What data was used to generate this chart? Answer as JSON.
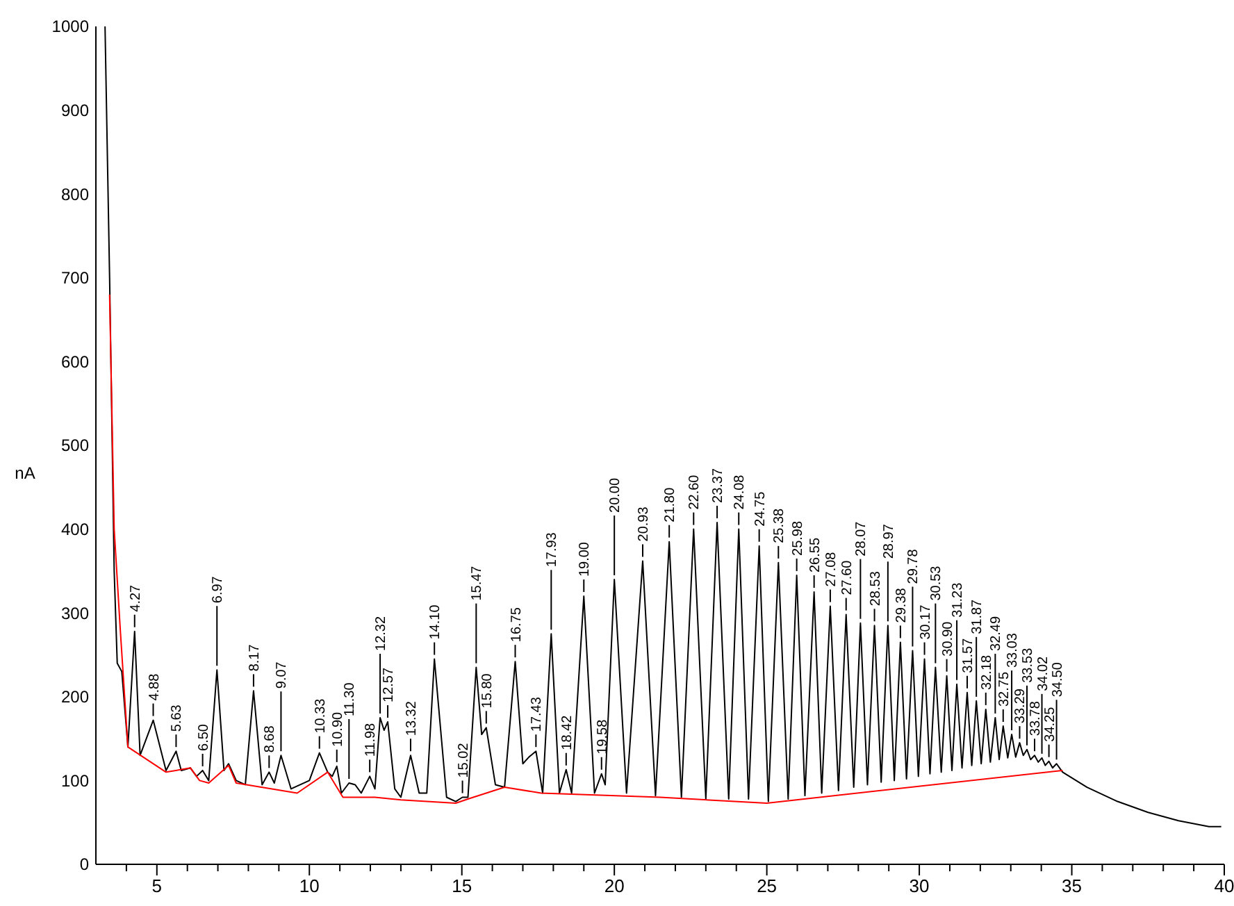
{
  "chart_data": {
    "type": "line",
    "ylabel": "nA",
    "xlim": [
      3,
      40
    ],
    "ylim": [
      0,
      1000
    ],
    "xticks": [
      {
        "value": 4,
        "label": null
      },
      5,
      {
        "value": 6,
        "label": null
      },
      {
        "value": 7,
        "label": null
      },
      {
        "value": 8,
        "label": null
      },
      {
        "value": 9,
        "label": null
      },
      10,
      {
        "value": 11,
        "label": null
      },
      {
        "value": 12,
        "label": null
      },
      {
        "value": 13,
        "label": null
      },
      {
        "value": 14,
        "label": null
      },
      15,
      {
        "value": 16,
        "label": null
      },
      {
        "value": 17,
        "label": null
      },
      {
        "value": 18,
        "label": null
      },
      {
        "value": 19,
        "label": null
      },
      20,
      {
        "value": 21,
        "label": null
      },
      {
        "value": 22,
        "label": null
      },
      {
        "value": 23,
        "label": null
      },
      {
        "value": 24,
        "label": null
      },
      25,
      {
        "value": 26,
        "label": null
      },
      {
        "value": 27,
        "label": null
      },
      {
        "value": 28,
        "label": null
      },
      {
        "value": 29,
        "label": null
      },
      30,
      {
        "value": 31,
        "label": null
      },
      {
        "value": 32,
        "label": null
      },
      {
        "value": 33,
        "label": null
      },
      {
        "value": 34,
        "label": null
      },
      35,
      {
        "value": 36,
        "label": null
      },
      {
        "value": 37,
        "label": null
      },
      {
        "value": 38,
        "label": null
      },
      {
        "value": 39,
        "label": null
      },
      40
    ],
    "yticks": [
      0,
      100,
      200,
      300,
      400,
      500,
      600,
      700,
      800,
      900,
      1000
    ],
    "grid": false,
    "marker": "none",
    "line_style": "solid",
    "series": [
      {
        "color": "#000000",
        "x": [
          3.3,
          3.45,
          3.6,
          3.7,
          3.85,
          4.05,
          4.27,
          4.45,
          4.88,
          5.3,
          5.63,
          5.8,
          6.1,
          6.3,
          6.5,
          6.7,
          6.97,
          7.2,
          7.35,
          7.6,
          7.9,
          8.17,
          8.45,
          8.68,
          8.85,
          9.07,
          9.4,
          9.7,
          10.0,
          10.33,
          10.6,
          10.75,
          10.9,
          11.05,
          11.3,
          11.5,
          11.7,
          11.98,
          12.15,
          12.32,
          12.45,
          12.57,
          12.8,
          13.0,
          13.32,
          13.6,
          13.85,
          14.1,
          14.5,
          14.8,
          15.02,
          15.2,
          15.47,
          15.65,
          15.8,
          16.1,
          16.4,
          16.75,
          17.0,
          17.2,
          17.43,
          17.65,
          17.93,
          18.2,
          18.42,
          18.6,
          19.0,
          19.35,
          19.58,
          19.7,
          20.0,
          20.4,
          20.93,
          21.35,
          21.8,
          22.2,
          22.6,
          23.0,
          23.37,
          23.75,
          24.08,
          24.4,
          24.75,
          25.05,
          25.38,
          25.7,
          25.98,
          26.25,
          26.55,
          26.8,
          27.08,
          27.35,
          27.6,
          27.85,
          28.07,
          28.3,
          28.53,
          28.75,
          28.97,
          29.18,
          29.38,
          29.58,
          29.78,
          29.97,
          30.17,
          30.35,
          30.53,
          30.72,
          30.9,
          31.07,
          31.23,
          31.4,
          31.57,
          31.72,
          31.87,
          32.03,
          32.18,
          32.33,
          32.49,
          32.62,
          32.75,
          32.9,
          33.03,
          33.16,
          33.29,
          33.41,
          33.53,
          33.65,
          33.78,
          33.9,
          34.02,
          34.13,
          34.25,
          34.37,
          34.5,
          34.7,
          35.5,
          36.5,
          37.5,
          38.5,
          39.5,
          39.9
        ],
        "values": [
          1000,
          700,
          350,
          240,
          230,
          140,
          278,
          130,
          172,
          112,
          135,
          112,
          115,
          105,
          112,
          100,
          232,
          112,
          120,
          100,
          95,
          207,
          95,
          110,
          97,
          130,
          90,
          95,
          100,
          133,
          110,
          105,
          117,
          85,
          97,
          95,
          85,
          105,
          90,
          175,
          160,
          170,
          90,
          80,
          130,
          85,
          85,
          245,
          80,
          75,
          80,
          80,
          235,
          155,
          163,
          95,
          92,
          242,
          120,
          128,
          135,
          85,
          275,
          85,
          113,
          85,
          320,
          85,
          108,
          95,
          340,
          85,
          362,
          82,
          385,
          80,
          400,
          78,
          408,
          78,
          400,
          78,
          380,
          75,
          360,
          78,
          345,
          82,
          325,
          85,
          308,
          88,
          298,
          92,
          288,
          95,
          285,
          98,
          285,
          100,
          265,
          102,
          255,
          105,
          245,
          108,
          235,
          110,
          225,
          112,
          215,
          115,
          205,
          118,
          195,
          120,
          185,
          122,
          175,
          125,
          165,
          127,
          155,
          128,
          145,
          130,
          137,
          125,
          130,
          122,
          127,
          118,
          123,
          115,
          120,
          110,
          92,
          75,
          62,
          52,
          45,
          45
        ]
      },
      {
        "color": "#ff0000",
        "x": [
          3.45,
          3.6,
          3.8,
          4.05,
          5.3,
          6.1,
          6.4,
          6.7,
          7.35,
          7.6,
          9.6,
          10.6,
          11.1,
          12.15,
          13.0,
          14.8,
          15.2,
          16.4,
          17.6,
          21.5,
          25.0,
          34.7
        ],
        "values": [
          680,
          400,
          280,
          140,
          110,
          115,
          100,
          97,
          118,
          97,
          85,
          110,
          80,
          80,
          77,
          73,
          78,
          92,
          85,
          80,
          73,
          112
        ]
      }
    ],
    "annotations": [
      {
        "text": "4.27",
        "x": 4.27,
        "y": 278
      },
      {
        "text": "4.88",
        "x": 4.88,
        "y": 172
      },
      {
        "text": "5.63",
        "x": 5.63,
        "y": 135
      },
      {
        "text": "6.50",
        "x": 6.5,
        "y": 112
      },
      {
        "text": "6.97",
        "x": 6.97,
        "y": 232
      },
      {
        "text": "8.17",
        "x": 8.17,
        "y": 207
      },
      {
        "text": "8.68",
        "x": 8.68,
        "y": 110
      },
      {
        "text": "9.07",
        "x": 9.07,
        "y": 130
      },
      {
        "text": "10.33",
        "x": 10.33,
        "y": 133
      },
      {
        "text": "10.90",
        "x": 10.9,
        "y": 117
      },
      {
        "text": "11.30",
        "x": 11.3,
        "y": 97
      },
      {
        "text": "11.98",
        "x": 11.98,
        "y": 105
      },
      {
        "text": "12.32",
        "x": 12.32,
        "y": 175
      },
      {
        "text": "12.57",
        "x": 12.57,
        "y": 170
      },
      {
        "text": "13.32",
        "x": 13.32,
        "y": 130
      },
      {
        "text": "14.10",
        "x": 14.1,
        "y": 245
      },
      {
        "text": "15.02",
        "x": 15.02,
        "y": 80
      },
      {
        "text": "15.47",
        "x": 15.47,
        "y": 235
      },
      {
        "text": "15.80",
        "x": 15.8,
        "y": 163
      },
      {
        "text": "16.75",
        "x": 16.75,
        "y": 242
      },
      {
        "text": "17.43",
        "x": 17.43,
        "y": 135
      },
      {
        "text": "17.93",
        "x": 17.93,
        "y": 275
      },
      {
        "text": "18.42",
        "x": 18.42,
        "y": 113
      },
      {
        "text": "19.00",
        "x": 19.0,
        "y": 320
      },
      {
        "text": "19.58",
        "x": 19.58,
        "y": 108
      },
      {
        "text": "20.00",
        "x": 20.0,
        "y": 340
      },
      {
        "text": "20.93",
        "x": 20.93,
        "y": 362
      },
      {
        "text": "21.80",
        "x": 21.8,
        "y": 385
      },
      {
        "text": "22.60",
        "x": 22.6,
        "y": 400
      },
      {
        "text": "23.37",
        "x": 23.37,
        "y": 408
      },
      {
        "text": "24.08",
        "x": 24.08,
        "y": 400
      },
      {
        "text": "24.75",
        "x": 24.75,
        "y": 380
      },
      {
        "text": "25.38",
        "x": 25.38,
        "y": 360
      },
      {
        "text": "25.98",
        "x": 25.98,
        "y": 345
      },
      {
        "text": "26.55",
        "x": 26.55,
        "y": 325
      },
      {
        "text": "27.08",
        "x": 27.08,
        "y": 308
      },
      {
        "text": "27.60",
        "x": 27.6,
        "y": 298
      },
      {
        "text": "28.07",
        "x": 28.07,
        "y": 288
      },
      {
        "text": "28.53",
        "x": 28.53,
        "y": 285
      },
      {
        "text": "28.97",
        "x": 28.97,
        "y": 285
      },
      {
        "text": "29.38",
        "x": 29.38,
        "y": 265
      },
      {
        "text": "29.78",
        "x": 29.78,
        "y": 255
      },
      {
        "text": "30.17",
        "x": 30.17,
        "y": 245
      },
      {
        "text": "30.53",
        "x": 30.53,
        "y": 235
      },
      {
        "text": "30.90",
        "x": 30.9,
        "y": 225
      },
      {
        "text": "31.23",
        "x": 31.23,
        "y": 215
      },
      {
        "text": "31.57",
        "x": 31.57,
        "y": 205
      },
      {
        "text": "31.87",
        "x": 31.87,
        "y": 195
      },
      {
        "text": "32.18",
        "x": 32.18,
        "y": 185
      },
      {
        "text": "32.49",
        "x": 32.49,
        "y": 175
      },
      {
        "text": "32.75",
        "x": 32.75,
        "y": 165
      },
      {
        "text": "33.03",
        "x": 33.03,
        "y": 155
      },
      {
        "text": "33.29",
        "x": 33.29,
        "y": 145
      },
      {
        "text": "33.53",
        "x": 33.53,
        "y": 137
      },
      {
        "text": "33.78",
        "x": 33.78,
        "y": 130
      },
      {
        "text": "34.02",
        "x": 34.02,
        "y": 127
      },
      {
        "text": "34.25",
        "x": 34.25,
        "y": 123
      },
      {
        "text": "34.50",
        "x": 34.5,
        "y": 120
      }
    ]
  }
}
